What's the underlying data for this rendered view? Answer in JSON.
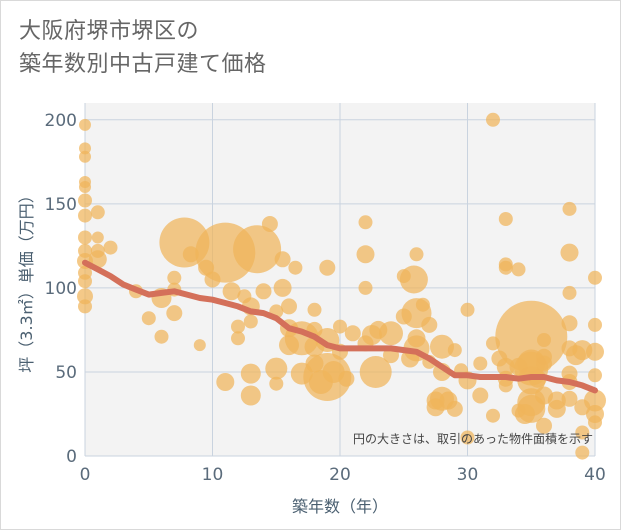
{
  "title_lines": [
    "大阪府堺市堺区の",
    "築年数別中古戸建て価格"
  ],
  "chart_data": {
    "type": "scatter",
    "title": "大阪府堺市堺区の築年数別中古戸建て価格",
    "xlabel": "築年数（年）",
    "ylabel": "坪（3.3㎡）単価（万円）",
    "xlim": [
      0,
      40
    ],
    "ylim": [
      0,
      210
    ],
    "x_ticks": [
      0,
      10,
      20,
      30,
      40
    ],
    "y_ticks": [
      0,
      50,
      100,
      150,
      200
    ],
    "grid": true,
    "note": "円の大きさは、取引のあった物件面積を示す",
    "colors": {
      "bubble": "#f0b45a",
      "trend": "#d4705a",
      "grid": "#c9d3df",
      "plot_bg": "#f3f3f3"
    },
    "series": [
      {
        "kind": "bubble",
        "points": [
          {
            "x": 0,
            "y": 197,
            "s": 6
          },
          {
            "x": 0,
            "y": 183,
            "s": 6
          },
          {
            "x": 0,
            "y": 178,
            "s": 6
          },
          {
            "x": 0,
            "y": 163,
            "s": 6
          },
          {
            "x": 0,
            "y": 160,
            "s": 6
          },
          {
            "x": 0,
            "y": 152,
            "s": 7
          },
          {
            "x": 0,
            "y": 143,
            "s": 7
          },
          {
            "x": 0,
            "y": 130,
            "s": 7
          },
          {
            "x": 0,
            "y": 122,
            "s": 7
          },
          {
            "x": 0,
            "y": 116,
            "s": 8
          },
          {
            "x": 0,
            "y": 109,
            "s": 7
          },
          {
            "x": 0,
            "y": 104,
            "s": 7
          },
          {
            "x": 0,
            "y": 95,
            "s": 8
          },
          {
            "x": 0,
            "y": 89,
            "s": 7
          },
          {
            "x": 1,
            "y": 145,
            "s": 7
          },
          {
            "x": 1,
            "y": 130,
            "s": 6
          },
          {
            "x": 1,
            "y": 122,
            "s": 7
          },
          {
            "x": 1,
            "y": 117,
            "s": 9
          },
          {
            "x": 2,
            "y": 124,
            "s": 7
          },
          {
            "x": 4,
            "y": 98,
            "s": 7
          },
          {
            "x": 5,
            "y": 82,
            "s": 7
          },
          {
            "x": 6,
            "y": 94,
            "s": 10
          },
          {
            "x": 6,
            "y": 71,
            "s": 7
          },
          {
            "x": 7,
            "y": 106,
            "s": 7
          },
          {
            "x": 7,
            "y": 99,
            "s": 7
          },
          {
            "x": 7,
            "y": 85,
            "s": 8
          },
          {
            "x": 7.8,
            "y": 127,
            "s": 25
          },
          {
            "x": 8.3,
            "y": 120,
            "s": 8
          },
          {
            "x": 9,
            "y": 66,
            "s": 6
          },
          {
            "x": 9.5,
            "y": 112,
            "s": 8
          },
          {
            "x": 10,
            "y": 105,
            "s": 8
          },
          {
            "x": 11,
            "y": 121,
            "s": 30
          },
          {
            "x": 11,
            "y": 44,
            "s": 9
          },
          {
            "x": 11.5,
            "y": 98,
            "s": 9
          },
          {
            "x": 12,
            "y": 77,
            "s": 7
          },
          {
            "x": 12,
            "y": 70,
            "s": 7
          },
          {
            "x": 12.5,
            "y": 95,
            "s": 7
          },
          {
            "x": 13,
            "y": 89,
            "s": 9
          },
          {
            "x": 13,
            "y": 80,
            "s": 7
          },
          {
            "x": 13,
            "y": 49,
            "s": 10
          },
          {
            "x": 13,
            "y": 36,
            "s": 10
          },
          {
            "x": 13.5,
            "y": 123,
            "s": 24
          },
          {
            "x": 14,
            "y": 98,
            "s": 8
          },
          {
            "x": 14.5,
            "y": 138,
            "s": 8
          },
          {
            "x": 15,
            "y": 86,
            "s": 7
          },
          {
            "x": 15,
            "y": 52,
            "s": 11
          },
          {
            "x": 15,
            "y": 43,
            "s": 7
          },
          {
            "x": 15.5,
            "y": 117,
            "s": 8
          },
          {
            "x": 15.5,
            "y": 100,
            "s": 9
          },
          {
            "x": 16,
            "y": 89,
            "s": 8
          },
          {
            "x": 16,
            "y": 76,
            "s": 9
          },
          {
            "x": 16,
            "y": 66,
            "s": 10
          },
          {
            "x": 16.5,
            "y": 112,
            "s": 7
          },
          {
            "x": 17,
            "y": 70,
            "s": 17
          },
          {
            "x": 17,
            "y": 49,
            "s": 11
          },
          {
            "x": 18,
            "y": 87,
            "s": 7
          },
          {
            "x": 18,
            "y": 75,
            "s": 8
          },
          {
            "x": 18,
            "y": 65,
            "s": 10
          },
          {
            "x": 18,
            "y": 55,
            "s": 9
          },
          {
            "x": 18.5,
            "y": 44,
            "s": 12
          },
          {
            "x": 19,
            "y": 112,
            "s": 8
          },
          {
            "x": 19,
            "y": 47,
            "s": 24
          },
          {
            "x": 19,
            "y": 69,
            "s": 12
          },
          {
            "x": 19.5,
            "y": 50,
            "s": 11
          },
          {
            "x": 20,
            "y": 77,
            "s": 7
          },
          {
            "x": 20,
            "y": 62,
            "s": 8
          },
          {
            "x": 20.5,
            "y": 46,
            "s": 8
          },
          {
            "x": 21,
            "y": 73,
            "s": 8
          },
          {
            "x": 22,
            "y": 139,
            "s": 7
          },
          {
            "x": 22,
            "y": 120,
            "s": 9
          },
          {
            "x": 22,
            "y": 100,
            "s": 7
          },
          {
            "x": 22,
            "y": 67,
            "s": 8
          },
          {
            "x": 22.5,
            "y": 72,
            "s": 10
          },
          {
            "x": 22.8,
            "y": 50,
            "s": 16
          },
          {
            "x": 23,
            "y": 75,
            "s": 9
          },
          {
            "x": 24,
            "y": 73,
            "s": 12
          },
          {
            "x": 24,
            "y": 60,
            "s": 8
          },
          {
            "x": 25,
            "y": 107,
            "s": 7
          },
          {
            "x": 25,
            "y": 83,
            "s": 8
          },
          {
            "x": 25.5,
            "y": 58,
            "s": 9
          },
          {
            "x": 25.8,
            "y": 105,
            "s": 14
          },
          {
            "x": 26,
            "y": 120,
            "s": 7
          },
          {
            "x": 26,
            "y": 85,
            "s": 15
          },
          {
            "x": 26,
            "y": 70,
            "s": 9
          },
          {
            "x": 26,
            "y": 64,
            "s": 13
          },
          {
            "x": 26.5,
            "y": 90,
            "s": 7
          },
          {
            "x": 27,
            "y": 78,
            "s": 8
          },
          {
            "x": 27,
            "y": 56,
            "s": 7
          },
          {
            "x": 27.5,
            "y": 33,
            "s": 9
          },
          {
            "x": 27.5,
            "y": 29,
            "s": 9
          },
          {
            "x": 28,
            "y": 65,
            "s": 12
          },
          {
            "x": 28,
            "y": 50,
            "s": 9
          },
          {
            "x": 28,
            "y": 34,
            "s": 12
          },
          {
            "x": 28.5,
            "y": 33,
            "s": 9
          },
          {
            "x": 29,
            "y": 63,
            "s": 7
          },
          {
            "x": 29,
            "y": 28,
            "s": 8
          },
          {
            "x": 29.5,
            "y": 51,
            "s": 7
          },
          {
            "x": 30,
            "y": 87,
            "s": 7
          },
          {
            "x": 30,
            "y": 45,
            "s": 9
          },
          {
            "x": 30,
            "y": 11,
            "s": 7
          },
          {
            "x": 31,
            "y": 55,
            "s": 7
          },
          {
            "x": 31,
            "y": 36,
            "s": 8
          },
          {
            "x": 32,
            "y": 200,
            "s": 7
          },
          {
            "x": 32,
            "y": 67,
            "s": 7
          },
          {
            "x": 32,
            "y": 24,
            "s": 7
          },
          {
            "x": 32.5,
            "y": 58,
            "s": 8
          },
          {
            "x": 33,
            "y": 141,
            "s": 7
          },
          {
            "x": 33,
            "y": 114,
            "s": 7
          },
          {
            "x": 33,
            "y": 112,
            "s": 7
          },
          {
            "x": 33,
            "y": 53,
            "s": 9
          },
          {
            "x": 33,
            "y": 46,
            "s": 8
          },
          {
            "x": 33,
            "y": 42,
            "s": 7
          },
          {
            "x": 34,
            "y": 111,
            "s": 7
          },
          {
            "x": 34,
            "y": 27,
            "s": 7
          },
          {
            "x": 34,
            "y": 53,
            "s": 9
          },
          {
            "x": 34.5,
            "y": 25,
            "s": 10
          },
          {
            "x": 35,
            "y": 71,
            "s": 36
          },
          {
            "x": 35,
            "y": 55,
            "s": 14
          },
          {
            "x": 35,
            "y": 52,
            "s": 17
          },
          {
            "x": 35,
            "y": 45,
            "s": 14
          },
          {
            "x": 35,
            "y": 32,
            "s": 14
          },
          {
            "x": 35,
            "y": 28,
            "s": 14
          },
          {
            "x": 35.5,
            "y": 46,
            "s": 9
          },
          {
            "x": 36,
            "y": 69,
            "s": 7
          },
          {
            "x": 36,
            "y": 59,
            "s": 8
          },
          {
            "x": 36,
            "y": 55,
            "s": 8
          },
          {
            "x": 36,
            "y": 36,
            "s": 9
          },
          {
            "x": 36,
            "y": 18,
            "s": 8
          },
          {
            "x": 37,
            "y": 33,
            "s": 9
          },
          {
            "x": 37,
            "y": 28,
            "s": 9
          },
          {
            "x": 38,
            "y": 147,
            "s": 7
          },
          {
            "x": 38,
            "y": 121,
            "s": 9
          },
          {
            "x": 38,
            "y": 97,
            "s": 7
          },
          {
            "x": 38,
            "y": 79,
            "s": 8
          },
          {
            "x": 38,
            "y": 64,
            "s": 8
          },
          {
            "x": 38,
            "y": 49,
            "s": 8
          },
          {
            "x": 38,
            "y": 44,
            "s": 8
          },
          {
            "x": 38,
            "y": 34,
            "s": 8
          },
          {
            "x": 38.5,
            "y": 60,
            "s": 10
          },
          {
            "x": 39,
            "y": 63,
            "s": 10
          },
          {
            "x": 39,
            "y": 29,
            "s": 8
          },
          {
            "x": 39,
            "y": 14,
            "s": 7
          },
          {
            "x": 39,
            "y": 2,
            "s": 7
          },
          {
            "x": 40,
            "y": 106,
            "s": 7
          },
          {
            "x": 40,
            "y": 78,
            "s": 7
          },
          {
            "x": 40,
            "y": 62,
            "s": 9
          },
          {
            "x": 40,
            "y": 48,
            "s": 7
          },
          {
            "x": 40,
            "y": 33,
            "s": 11
          },
          {
            "x": 40,
            "y": 25,
            "s": 9
          },
          {
            "x": 40,
            "y": 20,
            "s": 7
          }
        ]
      },
      {
        "kind": "trend",
        "x": [
          0,
          1,
          2,
          3,
          4,
          5,
          6,
          7,
          8,
          9,
          10,
          11,
          12,
          13,
          14,
          15,
          16,
          17,
          18,
          19,
          20,
          21,
          22,
          23,
          24,
          25,
          26,
          27,
          28,
          29,
          30,
          31,
          32,
          33,
          34,
          35,
          36,
          37,
          38,
          39,
          40
        ],
        "y": [
          115,
          111,
          107,
          102,
          99,
          96,
          97,
          98,
          96,
          94,
          93,
          91,
          89,
          86,
          85,
          82,
          76,
          74,
          71,
          66,
          64,
          64,
          64,
          64,
          64,
          63,
          62,
          58,
          53,
          48,
          48,
          47,
          47,
          47,
          46,
          47,
          47,
          45,
          44,
          42,
          39
        ]
      }
    ]
  }
}
